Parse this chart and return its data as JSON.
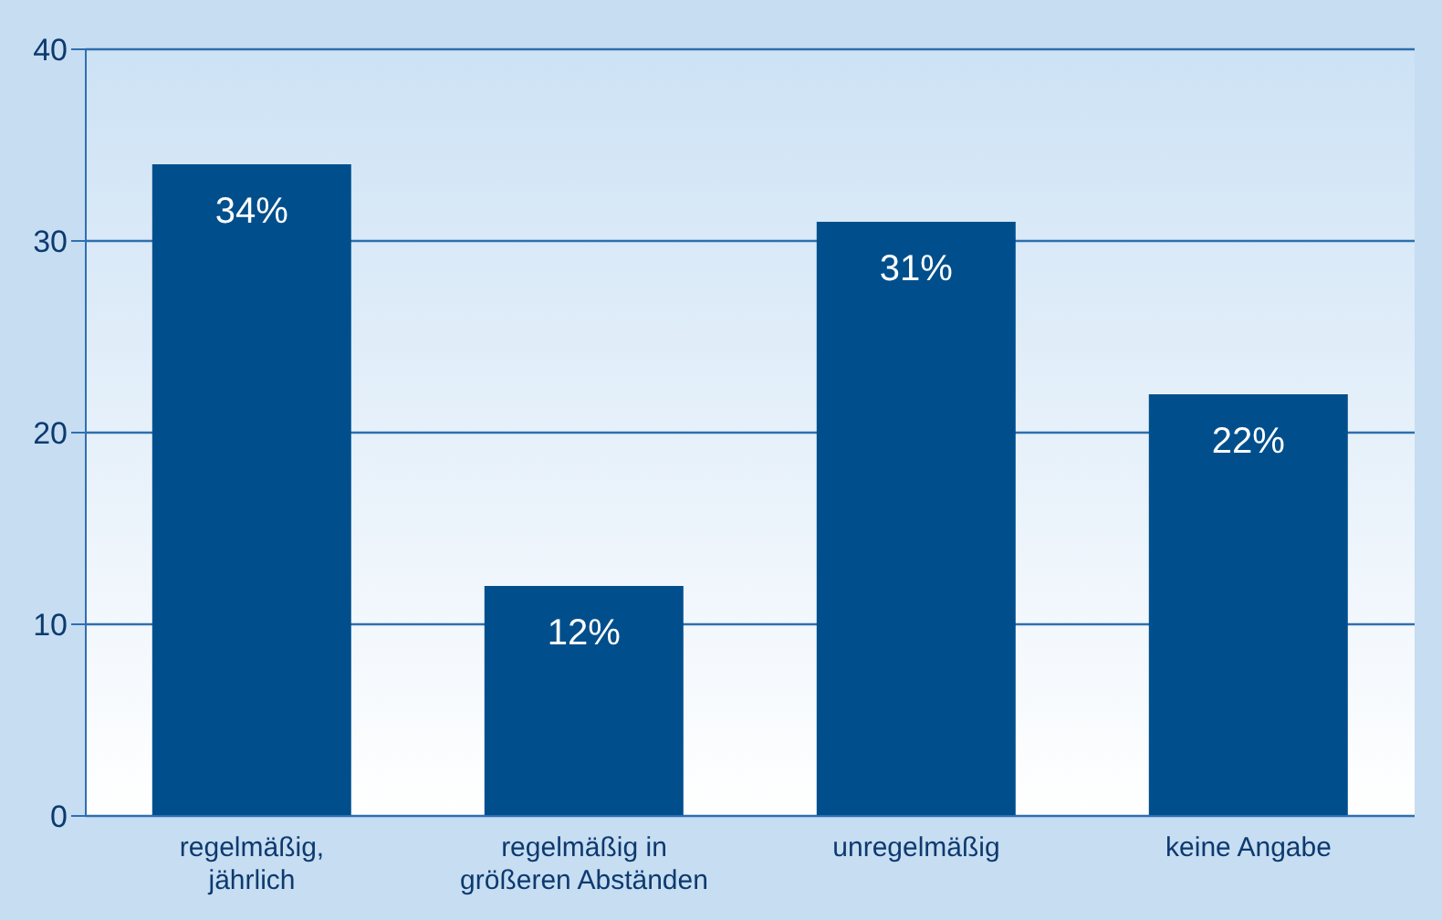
{
  "chart_data": {
    "type": "bar",
    "categories": [
      "regelmäßig, jährlich",
      "regelmäßig in größeren Abständen",
      "unregelmäßig",
      "keine Angabe"
    ],
    "values": [
      34,
      12,
      31,
      22
    ],
    "value_labels": [
      "34%",
      "12%",
      "31%",
      "22%"
    ],
    "color": "#004f8c",
    "ylim": [
      0,
      40
    ],
    "yticks": [
      0,
      10,
      20,
      30,
      40
    ],
    "grid": "y"
  }
}
